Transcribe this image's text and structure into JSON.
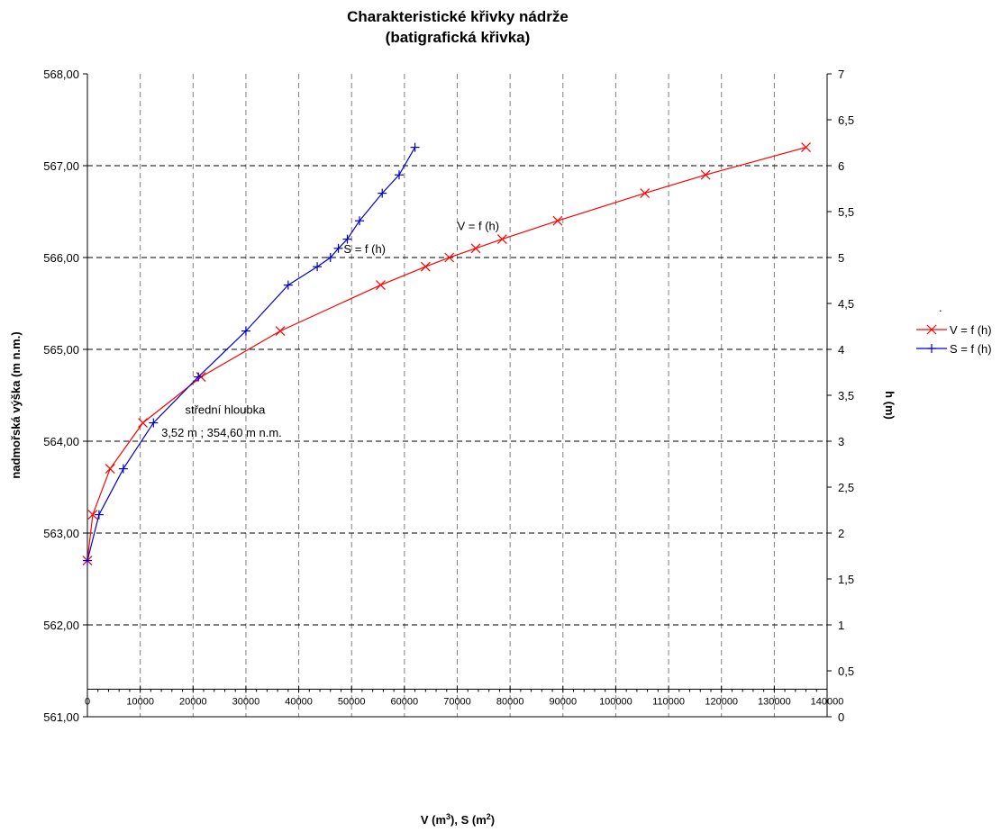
{
  "chart_data": {
    "type": "line",
    "title": "Charakteristické křivky nádrže",
    "subtitle": "(batigrafická křivka)",
    "xlabel": "V (m3), S (m2)",
    "ylabel": "nadmořská výška (m n.m.)",
    "y2label": "h (m)",
    "xlim": [
      0,
      140000
    ],
    "ylim": [
      561,
      568
    ],
    "y2lim": [
      0,
      7
    ],
    "x_ticks": [
      "0",
      "10000",
      "20000",
      "30000",
      "40000",
      "50000",
      "60000",
      "70000",
      "80000",
      "90000",
      "100000",
      "110000",
      "120000",
      "130000",
      "140000"
    ],
    "y_ticks": [
      "561,00",
      "562,00",
      "563,00",
      "564,00",
      "565,00",
      "566,00",
      "567,00",
      "568,00"
    ],
    "y2_ticks": [
      "0",
      "0,5",
      "1",
      "1,5",
      "2",
      "2,5",
      "3",
      "3,5",
      "4",
      "4,5",
      "5",
      "5,5",
      "6",
      "6,5",
      "7"
    ],
    "grid": true,
    "legend_position": "right",
    "legend_title": ".",
    "series": [
      {
        "name": "V = f (h)",
        "color": "#ff0000",
        "marker": "x",
        "x": [
          0,
          1000,
          4300,
          10500,
          21500,
          36500,
          55500,
          64000,
          68500,
          73500,
          78500,
          89000,
          105500,
          117000,
          136000
        ],
        "y": [
          562.7,
          563.2,
          563.7,
          564.2,
          564.7,
          565.2,
          565.7,
          565.9,
          566.0,
          566.1,
          566.2,
          566.4,
          566.7,
          566.9,
          567.2
        ]
      },
      {
        "name": "S = f (h)",
        "color": "#0000cc",
        "marker": "+",
        "x": [
          0,
          2200,
          6800,
          12500,
          21000,
          30000,
          38000,
          43500,
          46000,
          47500,
          49200,
          51500,
          55800,
          59000,
          62000
        ],
        "y": [
          562.7,
          563.2,
          563.7,
          564.2,
          564.7,
          565.2,
          565.7,
          565.9,
          566.0,
          566.1,
          566.2,
          566.4,
          566.7,
          566.9,
          567.2
        ]
      }
    ],
    "annotations": [
      {
        "text": "V = f (h)",
        "x": 70000,
        "y": 566.3
      },
      {
        "text": "S = f (h)",
        "x": 48500,
        "y": 566.05
      },
      {
        "text": "střední hloubka",
        "x": 18500,
        "y": 564.3
      },
      {
        "text": "3,52 m ; 354,60 m n.m.",
        "x": 14000,
        "y": 564.05
      }
    ]
  }
}
